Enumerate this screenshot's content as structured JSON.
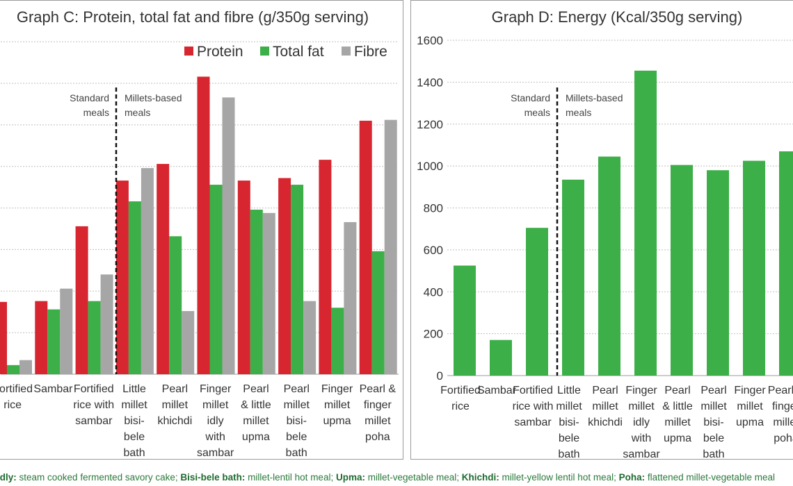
{
  "colors": {
    "protein": "#d7262f",
    "fat": "#3daf48",
    "fibre": "#a6a6a6",
    "energy": "#3daf48",
    "grid": "#bfbfbf"
  },
  "chart_data": [
    {
      "type": "bar",
      "title": "Graph C: Protein, total fat and fibre (g/350g serving)",
      "categories": [
        [
          "Fortified",
          "rice"
        ],
        [
          "Sambar"
        ],
        [
          "Fortified",
          "rice with",
          "sambar"
        ],
        [
          "Little",
          "millet",
          "bisi-",
          "bele",
          "bath"
        ],
        [
          "Pearl",
          "millet",
          "khichdi"
        ],
        [
          "Finger",
          "millet",
          "idly",
          "with",
          "sambar"
        ],
        [
          "Pearl",
          "& little",
          "millet",
          "upma"
        ],
        [
          "Pearl",
          "millet",
          "bisi-",
          "bele",
          "bath"
        ],
        [
          "Finger",
          "millet",
          "upma"
        ],
        [
          "Pearl &",
          "finger",
          "millet",
          "poha"
        ]
      ],
      "series": [
        {
          "name": "Protein",
          "values": [
            8.7,
            8.8,
            17.8,
            23.3,
            25.3,
            35.8,
            23.3,
            23.6,
            25.8,
            30.5
          ]
        },
        {
          "name": "Total fat",
          "values": [
            1.1,
            7.8,
            8.8,
            20.8,
            16.6,
            22.8,
            19.8,
            22.8,
            8.0,
            14.8
          ]
        },
        {
          "name": "Fibre",
          "values": [
            1.7,
            10.3,
            12.0,
            24.8,
            7.6,
            33.3,
            19.4,
            8.8,
            18.3,
            30.6
          ]
        }
      ],
      "ylim": [
        0,
        40
      ],
      "gridlines": true,
      "legend": "top-right",
      "annotations": {
        "left": [
          "Standard",
          "meals"
        ],
        "right": [
          "Millets-based",
          "meals"
        ]
      }
    },
    {
      "type": "bar",
      "title": "Graph D: Energy (Kcal/350g serving)",
      "categories": [
        [
          "Fortified",
          "rice"
        ],
        [
          "Sambar"
        ],
        [
          "Fortified",
          "rice with",
          "sambar"
        ],
        [
          "Little",
          "millet",
          "bisi-",
          "bele",
          "bath"
        ],
        [
          "Pearl",
          "millet",
          "khichdi"
        ],
        [
          "Finger",
          "millet",
          "idly",
          "with",
          "sambar"
        ],
        [
          "Pearl",
          "& little",
          "millet",
          "upma"
        ],
        [
          "Pearl",
          "millet",
          "bisi-",
          "bele",
          "bath"
        ],
        [
          "Finger",
          "millet",
          "upma"
        ],
        [
          "Pearl &",
          "finger",
          "millet",
          "poha"
        ]
      ],
      "series": [
        {
          "name": "",
          "values": [
            525,
            170,
            705,
            935,
            1045,
            1455,
            1005,
            980,
            1025,
            1070
          ]
        }
      ],
      "ylim": [
        0,
        1600
      ],
      "yticks": [
        0,
        200,
        400,
        600,
        800,
        1000,
        1200,
        1400,
        1600
      ],
      "gridlines": true,
      "annotations": {
        "left": [
          "Standard",
          "meals"
        ],
        "right": [
          "Millets-based",
          "meals"
        ]
      }
    }
  ],
  "footer": [
    {
      "term": "Idly:",
      "desc": " steam cooked fermented savory cake; "
    },
    {
      "term": "Bisi-bele bath:",
      "desc": " millet-lentil hot meal; "
    },
    {
      "term": "Upma:",
      "desc": " millet-vegetable meal; "
    },
    {
      "term": "Khichdi:",
      "desc": " millet-yellow lentil hot meal; "
    },
    {
      "term": "Poha:",
      "desc": " flattened millet-vegetable meal"
    }
  ]
}
